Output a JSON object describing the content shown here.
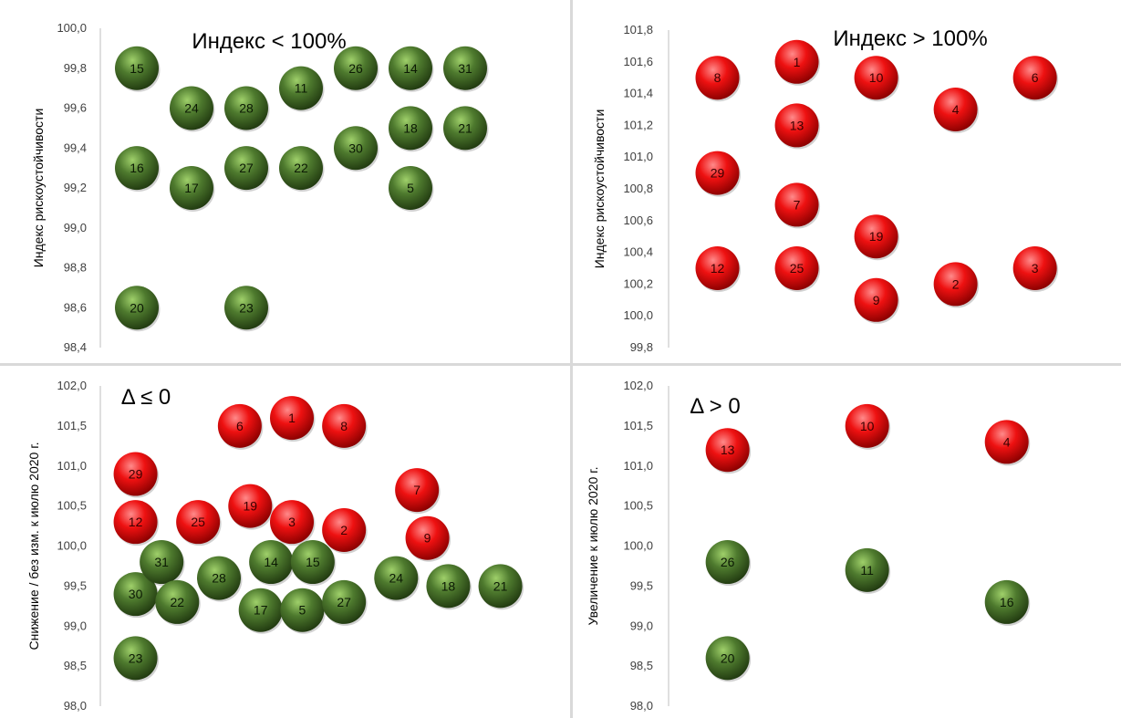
{
  "chart_data": [
    {
      "type": "scatter",
      "title": "Индекс < 100%",
      "xlabel": "",
      "ylabel": "Индекс рискоустойчивости",
      "ylim": [
        98.4,
        100.0
      ],
      "yticks": [
        "98,4",
        "98,6",
        "98,8",
        "99,0",
        "99,2",
        "99,4",
        "99,6",
        "99,8",
        "100,0"
      ],
      "xlim": [
        0.5,
        8.5
      ],
      "grid": false,
      "points": [
        {
          "label": "15",
          "x": 1,
          "y": 99.8,
          "color": "green"
        },
        {
          "label": "16",
          "x": 1,
          "y": 99.3,
          "color": "green"
        },
        {
          "label": "20",
          "x": 1,
          "y": 98.6,
          "color": "green"
        },
        {
          "label": "24",
          "x": 2,
          "y": 99.6,
          "color": "green"
        },
        {
          "label": "17",
          "x": 2,
          "y": 99.2,
          "color": "green"
        },
        {
          "label": "28",
          "x": 3,
          "y": 99.6,
          "color": "green"
        },
        {
          "label": "27",
          "x": 3,
          "y": 99.3,
          "color": "green"
        },
        {
          "label": "23",
          "x": 3,
          "y": 98.6,
          "color": "green"
        },
        {
          "label": "11",
          "x": 4,
          "y": 99.7,
          "color": "green"
        },
        {
          "label": "22",
          "x": 4,
          "y": 99.3,
          "color": "green"
        },
        {
          "label": "26",
          "x": 5,
          "y": 99.8,
          "color": "green"
        },
        {
          "label": "30",
          "x": 5,
          "y": 99.4,
          "color": "green"
        },
        {
          "label": "14",
          "x": 6,
          "y": 99.8,
          "color": "green"
        },
        {
          "label": "18",
          "x": 6,
          "y": 99.5,
          "color": "green"
        },
        {
          "label": "5",
          "x": 6,
          "y": 99.2,
          "color": "green"
        },
        {
          "label": "31",
          "x": 7,
          "y": 99.8,
          "color": "green"
        },
        {
          "label": "21",
          "x": 7,
          "y": 99.5,
          "color": "green"
        }
      ]
    },
    {
      "type": "scatter",
      "title": "Индекс > 100%",
      "xlabel": "",
      "ylabel": "Индекс рискоустойчивости",
      "ylim": [
        99.8,
        101.8
      ],
      "yticks": [
        "99,8",
        "100,0",
        "100,2",
        "100,4",
        "100,6",
        "100,8",
        "101,0",
        "101,2",
        "101,4",
        "101,6",
        "101,8"
      ],
      "xlim": [
        0.5,
        5.9
      ],
      "grid": false,
      "points": [
        {
          "label": "8",
          "x": 1,
          "y": 101.5,
          "color": "red"
        },
        {
          "label": "29",
          "x": 1,
          "y": 100.9,
          "color": "red"
        },
        {
          "label": "12",
          "x": 1,
          "y": 100.3,
          "color": "red"
        },
        {
          "label": "1",
          "x": 2,
          "y": 101.6,
          "color": "red"
        },
        {
          "label": "13",
          "x": 2,
          "y": 101.2,
          "color": "red"
        },
        {
          "label": "7",
          "x": 2,
          "y": 100.7,
          "color": "red"
        },
        {
          "label": "25",
          "x": 2,
          "y": 100.3,
          "color": "red"
        },
        {
          "label": "10",
          "x": 3,
          "y": 101.5,
          "color": "red"
        },
        {
          "label": "19",
          "x": 3,
          "y": 100.5,
          "color": "red"
        },
        {
          "label": "9",
          "x": 3,
          "y": 100.1,
          "color": "red"
        },
        {
          "label": "4",
          "x": 4,
          "y": 101.3,
          "color": "red"
        },
        {
          "label": "2",
          "x": 4,
          "y": 100.2,
          "color": "red"
        },
        {
          "label": "6",
          "x": 5,
          "y": 101.5,
          "color": "red"
        },
        {
          "label": "3",
          "x": 5,
          "y": 100.3,
          "color": "red"
        }
      ]
    },
    {
      "type": "scatter",
      "title": "Δ ≤ 0",
      "xlabel": "",
      "ylabel": "Снижение / без изм. к июлю 2020 г.",
      "ylim": [
        98.0,
        102.0
      ],
      "yticks": [
        "98,0",
        "98,5",
        "99,0",
        "99,5",
        "100,0",
        "100,5",
        "101,0",
        "101,5",
        "102,0"
      ],
      "xlim": [
        0.5,
        8.9
      ],
      "grid": false,
      "points": [
        {
          "label": "29",
          "x": 1,
          "y": 100.9,
          "color": "red"
        },
        {
          "label": "12",
          "x": 1,
          "y": 100.3,
          "color": "red"
        },
        {
          "label": "30",
          "x": 1,
          "y": 99.4,
          "color": "green"
        },
        {
          "label": "23",
          "x": 1,
          "y": 98.6,
          "color": "green"
        },
        {
          "label": "31",
          "x": 1.5,
          "y": 99.8,
          "color": "green"
        },
        {
          "label": "22",
          "x": 1.8,
          "y": 99.3,
          "color": "green"
        },
        {
          "label": "25",
          "x": 2.2,
          "y": 100.3,
          "color": "red"
        },
        {
          "label": "28",
          "x": 2.6,
          "y": 99.6,
          "color": "green"
        },
        {
          "label": "6",
          "x": 3,
          "y": 101.5,
          "color": "red"
        },
        {
          "label": "19",
          "x": 3.2,
          "y": 100.5,
          "color": "red"
        },
        {
          "label": "17",
          "x": 3.4,
          "y": 99.2,
          "color": "green"
        },
        {
          "label": "14",
          "x": 3.6,
          "y": 99.8,
          "color": "green"
        },
        {
          "label": "1",
          "x": 4,
          "y": 101.6,
          "color": "red"
        },
        {
          "label": "3",
          "x": 4,
          "y": 100.3,
          "color": "red"
        },
        {
          "label": "5",
          "x": 4.2,
          "y": 99.2,
          "color": "green"
        },
        {
          "label": "15",
          "x": 4.4,
          "y": 99.8,
          "color": "green"
        },
        {
          "label": "8",
          "x": 5,
          "y": 101.5,
          "color": "red"
        },
        {
          "label": "2",
          "x": 5,
          "y": 100.2,
          "color": "red"
        },
        {
          "label": "27",
          "x": 5,
          "y": 99.3,
          "color": "green"
        },
        {
          "label": "24",
          "x": 6,
          "y": 99.6,
          "color": "green"
        },
        {
          "label": "7",
          "x": 6.4,
          "y": 100.7,
          "color": "red"
        },
        {
          "label": "9",
          "x": 6.6,
          "y": 100.1,
          "color": "red"
        },
        {
          "label": "18",
          "x": 7,
          "y": 99.5,
          "color": "green"
        },
        {
          "label": "21",
          "x": 8,
          "y": 99.5,
          "color": "green"
        }
      ]
    },
    {
      "type": "scatter",
      "title": "Δ > 0",
      "xlabel": "",
      "ylabel": "Увеличение к июлю 2020 г.",
      "ylim": [
        98.0,
        102.0
      ],
      "yticks": [
        "98,0",
        "98,5",
        "99,0",
        "99,5",
        "100,0",
        "100,5",
        "101,0",
        "101,5",
        "102,0"
      ],
      "xlim": [
        0.5,
        4.8
      ],
      "grid": false,
      "points": [
        {
          "label": "13",
          "x": 1,
          "y": 101.2,
          "color": "red"
        },
        {
          "label": "26",
          "x": 1,
          "y": 99.8,
          "color": "green"
        },
        {
          "label": "20",
          "x": 1,
          "y": 98.6,
          "color": "green"
        },
        {
          "label": "10",
          "x": 2.4,
          "y": 101.5,
          "color": "red"
        },
        {
          "label": "11",
          "x": 2.4,
          "y": 99.7,
          "color": "green"
        },
        {
          "label": "4",
          "x": 3.8,
          "y": 101.3,
          "color": "red"
        },
        {
          "label": "16",
          "x": 3.8,
          "y": 99.3,
          "color": "green"
        }
      ]
    }
  ],
  "colors": {
    "green_fill": "#4e7a2e",
    "green_light": "#9fd06a",
    "green_dark": "#213a10",
    "red_fill": "#ee1111",
    "red_light": "#ff8a8a",
    "red_dark": "#8a0000",
    "axis": "#bfbfbf",
    "text": "#000000"
  }
}
